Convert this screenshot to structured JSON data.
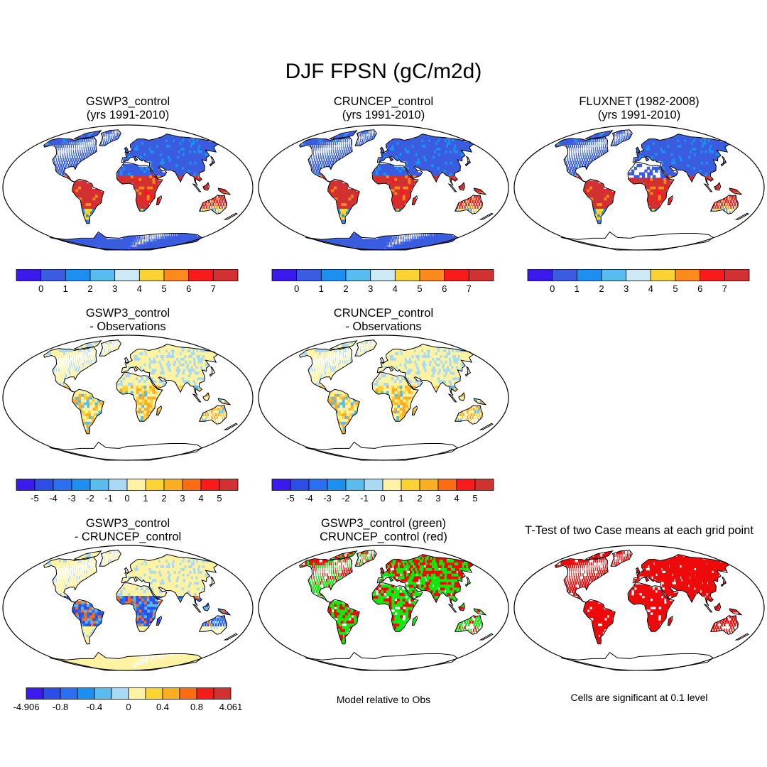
{
  "figure": {
    "title": "DJF FPSN (gC/m2d)"
  },
  "panels": [
    {
      "id": "p1",
      "line1": "GSWP3_control",
      "line2": "(yrs 1991-2010)",
      "style": "abs"
    },
    {
      "id": "p2",
      "line1": "CRUNCEP_control",
      "line2": "(yrs 1991-2010)",
      "style": "abs"
    },
    {
      "id": "p3",
      "line1": "FLUXNET (1982-2008)",
      "line2": "(yrs 1991-2010)",
      "style": "obs"
    },
    {
      "id": "p4",
      "line1": "GSWP3_control",
      "line2": "- Observations",
      "style": "diffobs"
    },
    {
      "id": "p5",
      "line1": "CRUNCEP_control",
      "line2": "- Observations",
      "style": "diffobs"
    },
    {
      "id": "p6",
      "line1": "GSWP3_control",
      "line2": "- CRUNCEP_control",
      "style": "diffcase"
    },
    {
      "id": "p7",
      "line1": "GSWP3_control (green)",
      "line2": "CRUNCEP_control (red)",
      "style": "rel"
    },
    {
      "id": "p8",
      "line1": "T-Test of two Case means at each grid point",
      "line2": "",
      "style": "ttest"
    }
  ],
  "colorbars": {
    "abs": {
      "colors": [
        "#3b1aee",
        "#3a5de0",
        "#1c8ff0",
        "#59bbf0",
        "#cde9f6",
        "#fdd233",
        "#fd8a1c",
        "#f91a1a",
        "#d23131"
      ],
      "labels": [
        "0",
        "1",
        "2",
        "3",
        "4",
        "5",
        "6",
        "7"
      ]
    },
    "diffobs": {
      "colors": [
        "#3b1aee",
        "#2c4ee6",
        "#2a6ff0",
        "#1c8ff0",
        "#59bbf0",
        "#a9d9f3",
        "#fdf3a2",
        "#fdd233",
        "#fdad22",
        "#fd6b12",
        "#f91a1a",
        "#d23131"
      ],
      "labels": [
        "-5",
        "-4",
        "-3",
        "-2",
        "-1",
        "0",
        "1",
        "2",
        "3",
        "4",
        "5"
      ]
    },
    "diffcase": {
      "colors": [
        "#3b1aee",
        "#2c4ee6",
        "#2a6ff0",
        "#1c8ff0",
        "#59bbf0",
        "#a9d9f3",
        "#fdf3a2",
        "#fdd233",
        "#fdad22",
        "#fd6b12",
        "#f91a1a",
        "#d23131"
      ],
      "labels": [
        "-4.906",
        "-0.8",
        "-0.4",
        "0",
        "0.4",
        "0.8",
        "4.061"
      ]
    }
  },
  "notes": {
    "relative": "Model relative to Obs",
    "significance": "Cells are significant at 0.1 level"
  },
  "colors": {
    "land_high": "#d0302c",
    "land_low": "#3f62d6",
    "diff_pos": "#fcef9c",
    "diff_neg": "#5c8ce6",
    "green": "#13e80e",
    "red": "#ee0a0a",
    "ocean": "#ffffff",
    "coast": "#000000"
  }
}
